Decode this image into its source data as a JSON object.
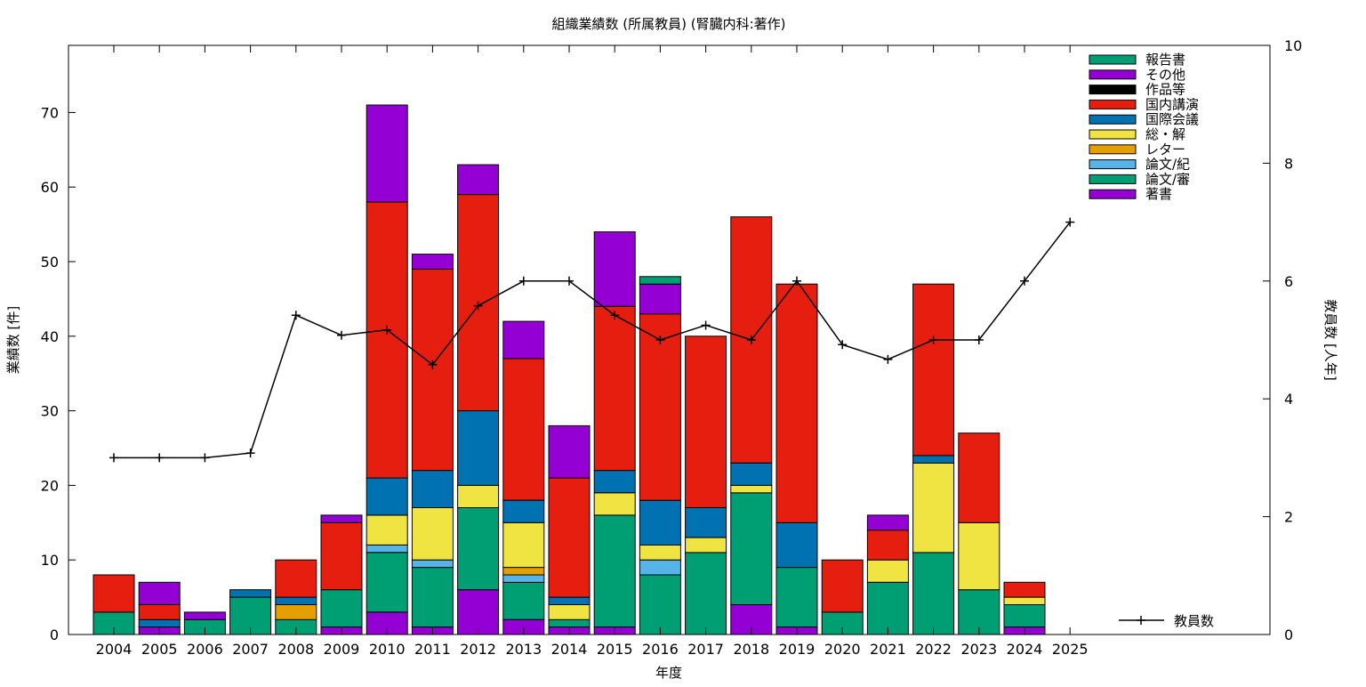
{
  "chart_data": {
    "type": "bar",
    "stacked": true,
    "title": "組織業績数 (所属教員) (腎臓内科:著作)",
    "xlabel": "年度",
    "ylabel": "業績数 [件]",
    "y2label": "教員数 [人年]",
    "ylim": [
      0,
      79
    ],
    "y2lim": [
      0,
      10
    ],
    "yticks": [
      0,
      10,
      20,
      30,
      40,
      50,
      60,
      70
    ],
    "y2ticks": [
      0,
      2,
      4,
      6,
      8,
      10
    ],
    "grid": false,
    "legend_position": "top-right",
    "categories": [
      "2004",
      "2005",
      "2006",
      "2007",
      "2008",
      "2009",
      "2010",
      "2011",
      "2012",
      "2013",
      "2014",
      "2015",
      "2016",
      "2017",
      "2018",
      "2019",
      "2020",
      "2021",
      "2022",
      "2023",
      "2024",
      "2025"
    ],
    "series": [
      {
        "name": "著書",
        "color": "#9400d3",
        "values": [
          0,
          1,
          0,
          0,
          0,
          1,
          3,
          1,
          6,
          2,
          1,
          1,
          0,
          0,
          4,
          1,
          0,
          0,
          0,
          0,
          1,
          0
        ]
      },
      {
        "name": "論文/審",
        "color": "#009e73",
        "values": [
          3,
          0,
          2,
          5,
          2,
          5,
          8,
          8,
          11,
          5,
          1,
          15,
          8,
          11,
          15,
          8,
          3,
          7,
          11,
          6,
          3,
          0
        ]
      },
      {
        "name": "論文/紀",
        "color": "#56b4e9",
        "values": [
          0,
          0,
          0,
          0,
          0,
          0,
          1,
          1,
          0,
          1,
          0,
          0,
          2,
          0,
          0,
          0,
          0,
          0,
          0,
          0,
          0,
          0
        ]
      },
      {
        "name": "レター",
        "color": "#e69f00",
        "values": [
          0,
          0,
          0,
          0,
          2,
          0,
          0,
          0,
          0,
          1,
          0,
          0,
          0,
          0,
          0,
          0,
          0,
          0,
          0,
          0,
          0,
          0
        ]
      },
      {
        "name": "総・解",
        "color": "#f0e442",
        "values": [
          0,
          0,
          0,
          0,
          0,
          0,
          4,
          7,
          3,
          6,
          2,
          3,
          2,
          2,
          1,
          0,
          0,
          3,
          12,
          9,
          1,
          0
        ]
      },
      {
        "name": "国際会議",
        "color": "#0072b2",
        "values": [
          0,
          1,
          0,
          1,
          1,
          0,
          5,
          5,
          10,
          3,
          1,
          3,
          6,
          4,
          3,
          6,
          0,
          0,
          1,
          0,
          0,
          0
        ]
      },
      {
        "name": "国内講演",
        "color": "#e51e10",
        "values": [
          5,
          2,
          0,
          0,
          5,
          9,
          37,
          27,
          29,
          19,
          16,
          22,
          25,
          23,
          33,
          32,
          7,
          4,
          23,
          12,
          2,
          0
        ]
      },
      {
        "name": "作品等",
        "color": "#000000",
        "values": [
          0,
          0,
          0,
          0,
          0,
          0,
          0,
          0,
          0,
          0,
          0,
          0,
          0,
          0,
          0,
          0,
          0,
          0,
          0,
          0,
          0,
          0
        ]
      },
      {
        "name": "その他",
        "color": "#9400d3",
        "values": [
          0,
          3,
          1,
          0,
          0,
          1,
          13,
          2,
          4,
          5,
          7,
          10,
          4,
          0,
          0,
          0,
          0,
          2,
          0,
          0,
          0,
          0
        ]
      },
      {
        "name": "報告書",
        "color": "#009e73",
        "values": [
          0,
          0,
          0,
          0,
          0,
          0,
          0,
          0,
          0,
          0,
          0,
          0,
          1,
          0,
          0,
          0,
          0,
          0,
          0,
          0,
          0,
          0
        ]
      }
    ],
    "line_series": {
      "name": "教員数",
      "color": "#000000",
      "axis": "y2",
      "values": [
        3.0,
        3.0,
        3.0,
        3.08,
        5.42,
        5.08,
        5.17,
        4.58,
        5.58,
        6.0,
        6.0,
        5.42,
        5.0,
        5.25,
        5.0,
        6.0,
        4.92,
        4.67,
        5.0,
        5.0,
        6.0,
        7.0
      ]
    }
  }
}
